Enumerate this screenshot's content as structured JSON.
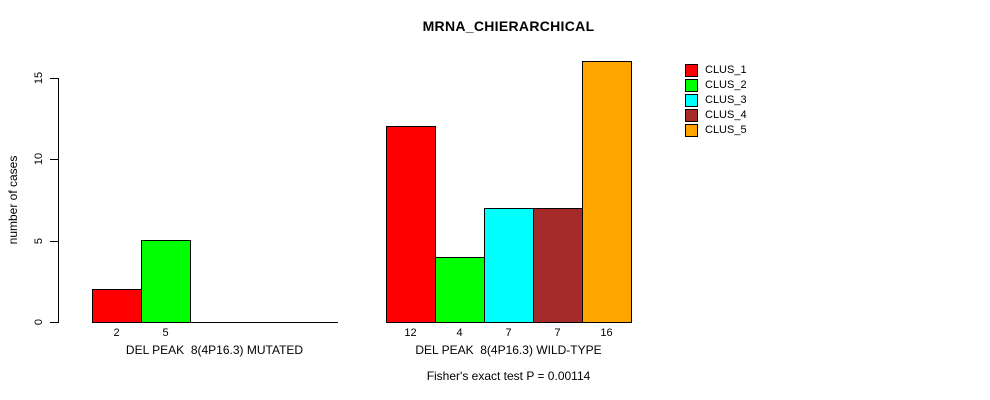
{
  "chart_data": {
    "type": "bar",
    "title": "MRNA_CHIERARCHICAL",
    "ylabel": "number of cases",
    "xlabel": "",
    "ylim": [
      0,
      16
    ],
    "yticks": [
      0,
      5,
      10,
      15
    ],
    "grid": false,
    "legend_position": "top-right",
    "bar_outline_color": "#000000",
    "categories": [
      "DEL PEAK  8(4P16.3) MUTATED",
      "DEL PEAK  8(4P16.3) WILD-TYPE"
    ],
    "series": [
      {
        "name": "CLUS_1",
        "color": "#ff0000",
        "values": [
          2,
          12
        ]
      },
      {
        "name": "CLUS_2",
        "color": "#00ff00",
        "values": [
          5,
          4
        ]
      },
      {
        "name": "CLUS_3",
        "color": "#00ffff",
        "values": [
          0,
          7
        ]
      },
      {
        "name": "CLUS_4",
        "color": "#a52a2a",
        "values": [
          0,
          7
        ]
      },
      {
        "name": "CLUS_5",
        "color": "#ffa500",
        "values": [
          0,
          16
        ]
      }
    ],
    "bar_value_labels": {
      "shown": true,
      "show_zeroes": false
    },
    "annotation": "Fisher's exact test P = 0.00114"
  }
}
